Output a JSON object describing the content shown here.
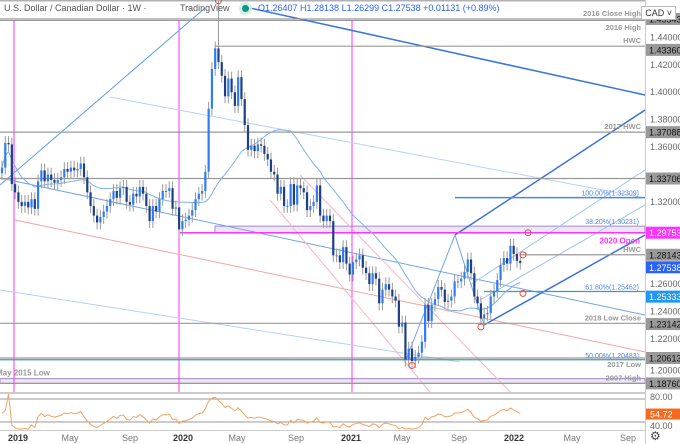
{
  "header": {
    "symbol": "U.S. Dollar / Canadian Dollar · 1W ·",
    "brand": "TradingView",
    "ohlc": "O1.26407 H1.28138 L1.26299 C1.27538 +0.01131 (+0.89%)",
    "currency_button": "CAD ˅"
  },
  "colors": {
    "up": "#2f7cf6",
    "down": "#1d3f86",
    "wick": "#9a9a9a",
    "rsi": "#f4a261",
    "magenta": "#ff33ff",
    "accent_blue": "#2962ff"
  },
  "settings_icon": "gear-icon",
  "chart_data": {
    "type": "candlestick",
    "title": "",
    "x_start": "2018-12-17",
    "interval": "1W",
    "closes": [
      1.345,
      1.363,
      1.362,
      1.333,
      1.327,
      1.32,
      1.317,
      1.32,
      1.316,
      1.322,
      1.315,
      1.335,
      1.343,
      1.335,
      1.34,
      1.336,
      1.334,
      1.336,
      1.338,
      1.344,
      1.342,
      1.345,
      1.343,
      1.344,
      1.348,
      1.338,
      1.327,
      1.317,
      1.31,
      1.305,
      1.309,
      1.313,
      1.317,
      1.322,
      1.328,
      1.323,
      1.33,
      1.331,
      1.32,
      1.318,
      1.326,
      1.324,
      1.331,
      1.326,
      1.317,
      1.306,
      1.317,
      1.313,
      1.322,
      1.328,
      1.328,
      1.33,
      1.315,
      1.316,
      1.3,
      1.306,
      1.307,
      1.31,
      1.314,
      1.322,
      1.326,
      1.328,
      1.342,
      1.388,
      1.417,
      1.432,
      1.422,
      1.412,
      1.397,
      1.41,
      1.4,
      1.39,
      1.411,
      1.395,
      1.376,
      1.358,
      1.361,
      1.357,
      1.362,
      1.361,
      1.355,
      1.351,
      1.342,
      1.34,
      1.326,
      1.331,
      1.317,
      1.317,
      1.333,
      1.318,
      1.332,
      1.33,
      1.327,
      1.314,
      1.317,
      1.32,
      1.332,
      1.31,
      1.306,
      1.31,
      1.306,
      1.281,
      1.281,
      1.276,
      1.287,
      1.275,
      1.267,
      1.276,
      1.278,
      1.281,
      1.272,
      1.268,
      1.26,
      1.268,
      1.264,
      1.246,
      1.256,
      1.26,
      1.256,
      1.251,
      1.248,
      1.229,
      1.232,
      1.205,
      1.213,
      1.204,
      1.207,
      1.21,
      1.218,
      1.245,
      1.233,
      1.245,
      1.249,
      1.258,
      1.256,
      1.247,
      1.248,
      1.251,
      1.262,
      1.262,
      1.264,
      1.269,
      1.278,
      1.268,
      1.251,
      1.246,
      1.235,
      1.238,
      1.239,
      1.251,
      1.255,
      1.263,
      1.274,
      1.279,
      1.275,
      1.288,
      1.282,
      1.277,
      1.27538
    ],
    "swing_markers": [
      1.4667,
      1.2007,
      1.2288,
      1.2975,
      1.2814,
      1.2533
    ],
    "y_axis_ticks": [
      "1.44000",
      "1.42000",
      "1.40000",
      "1.38000",
      "1.36000",
      "1.32000",
      "1.26000",
      "1.24000",
      "1.22000",
      "1.20000"
    ],
    "levels": [
      {
        "price": 1.4667,
        "label": "2016 High",
        "axis": ""
      },
      {
        "price": 1.45343,
        "label": "2016 Close High",
        "axis": "1.45343"
      },
      {
        "price": 1.4336,
        "label": "HWC",
        "axis": "1.43360"
      },
      {
        "price": 1.37088,
        "label": "2017 HWC",
        "axis": "1.37088"
      },
      {
        "price": 1.33706,
        "label": "",
        "axis": "1.33706"
      },
      {
        "price": 1.28143,
        "label": "HWC",
        "axis": "1.28143"
      },
      {
        "price": 1.23142,
        "label": "2018 Low Close",
        "axis": "1.23142"
      },
      {
        "price": 1.20613,
        "label": "2017 Low",
        "axis": "1.20613"
      },
      {
        "price": 1.1876,
        "label": "2007 High",
        "axis": "1.18760"
      }
    ],
    "fib_levels": [
      {
        "price": 1.32309,
        "label": "100.00%(1.32309)"
      },
      {
        "price": 1.30231,
        "label": "38.20%(1.30231)"
      },
      {
        "price": 1.25462,
        "label": "61.80%(1.25462)"
      },
      {
        "price": 1.20483,
        "label": "50.00%(1.20483)"
      }
    ],
    "open_2020": {
      "price": 1.29753,
      "label": "2020 Open",
      "axis": "1.29753"
    },
    "last_price": {
      "axis": "1.27538"
    },
    "support_price": {
      "axis": "1.25333"
    },
    "band_label": "May 2015 Low",
    "x_ticks": [
      "2019",
      "May",
      "Sep",
      "2020",
      "May",
      "Sep",
      "2021",
      "May",
      "Sep",
      "2022",
      "May",
      "Sep"
    ],
    "rsi": {
      "ticks": [
        "80.00",
        "40.00"
      ],
      "last": "54.72"
    }
  }
}
